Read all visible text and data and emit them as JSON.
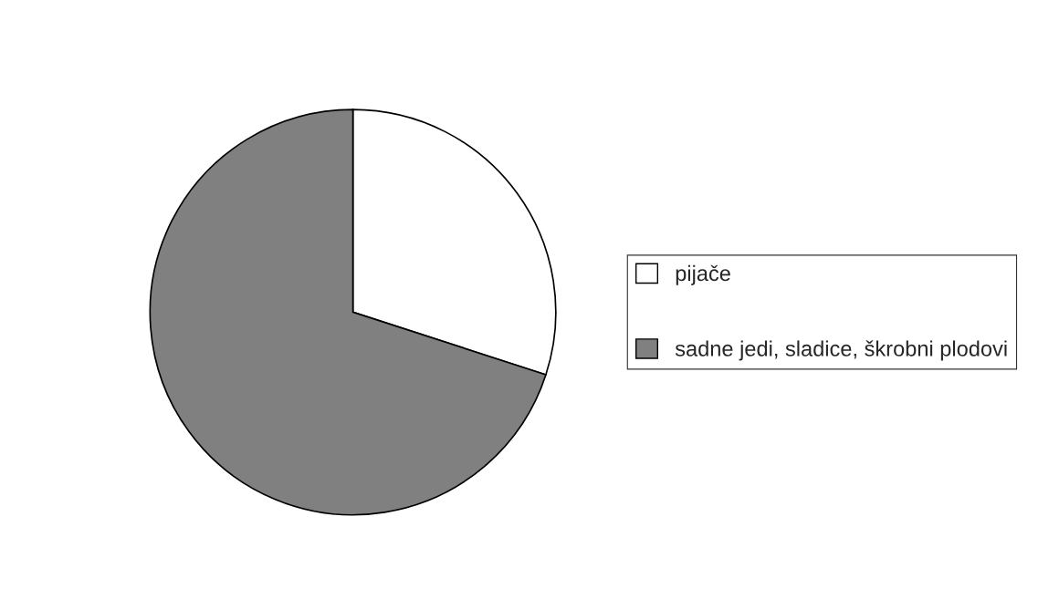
{
  "chart_data": {
    "type": "pie",
    "categories": [
      "pijače",
      "sadne jedi, sladice, škrobni plodovi"
    ],
    "values": [
      30,
      70
    ],
    "colors": [
      "#ffffff",
      "#808080"
    ],
    "legend": "right"
  }
}
